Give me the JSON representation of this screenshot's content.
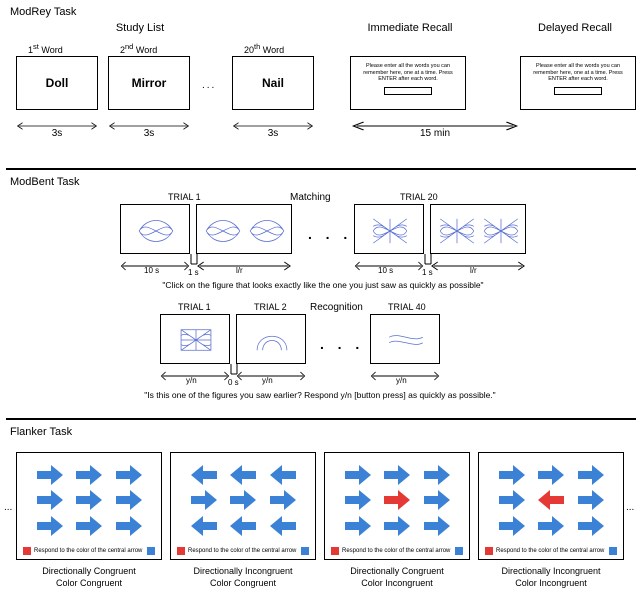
{
  "colors": {
    "blue": "#3b82d6",
    "red": "#e53935",
    "figure_stroke": "#5a6fd0",
    "black": "#000000",
    "white": "#ffffff"
  },
  "task1": {
    "title": "ModRey Task",
    "study_list_label": "Study List",
    "immediate_label": "Immediate Recall",
    "delayed_label": "Delayed Recall",
    "words": [
      {
        "ordinal": "1",
        "sup": "st",
        "suffix": " Word",
        "text": "Doll"
      },
      {
        "ordinal": "2",
        "sup": "nd",
        "suffix": " Word",
        "text": "Mirror"
      },
      {
        "ordinal": "20",
        "sup": "th",
        "suffix": " Word",
        "text": "Nail"
      }
    ],
    "ellipsis": "...",
    "duration_each": "3s",
    "delay": "15 min",
    "recall_instr": "Please enter all the words you can remember here, one at a time. Press ENTER after each word."
  },
  "task2": {
    "title": "ModBent Task",
    "matching": {
      "label": "Matching",
      "trial1": "TRIAL 1",
      "trial20": "TRIAL 20",
      "t_left": "10 s",
      "t_gap": "1 s",
      "t_right": "l/r",
      "quote": "\"Click on the figure that looks exactly like the one you just saw as quickly as possible\""
    },
    "recognition": {
      "label": "Recognition",
      "trial1": "TRIAL 1",
      "trial2": "TRIAL 2",
      "trial40": "TRIAL 40",
      "resp": "y/n",
      "gap": "0 s",
      "quote": "\"Is this one of the figures you saw earlier?  Respond y/n [button press] as quickly as possible.\""
    }
  },
  "task3": {
    "title": "Flanker Task",
    "legend_text": "Respond to the color of the central arrow",
    "panels": [
      {
        "dirs": [
          "R",
          "R",
          "R",
          "R",
          "R",
          "R",
          "R",
          "R",
          "R"
        ],
        "center_color": "blue",
        "cap1": "Directionally Congruent",
        "cap2": "Color Congruent"
      },
      {
        "dirs": [
          "L",
          "L",
          "L",
          "R",
          "R",
          "R",
          "L",
          "L",
          "L"
        ],
        "center_color": "blue",
        "cap1": "Directionally Incongruent",
        "cap2": "Color Congruent"
      },
      {
        "dirs": [
          "R",
          "R",
          "R",
          "R",
          "R",
          "R",
          "R",
          "R",
          "R"
        ],
        "center_color": "red",
        "cap1": "Directionally Congruent",
        "cap2": "Color Incongruent"
      },
      {
        "dirs": [
          "R",
          "R",
          "R",
          "R",
          "L",
          "R",
          "R",
          "R",
          "R"
        ],
        "center_color": "red",
        "cap1": "Directionally Incongruent",
        "cap2": "Color Incongruent"
      }
    ]
  }
}
